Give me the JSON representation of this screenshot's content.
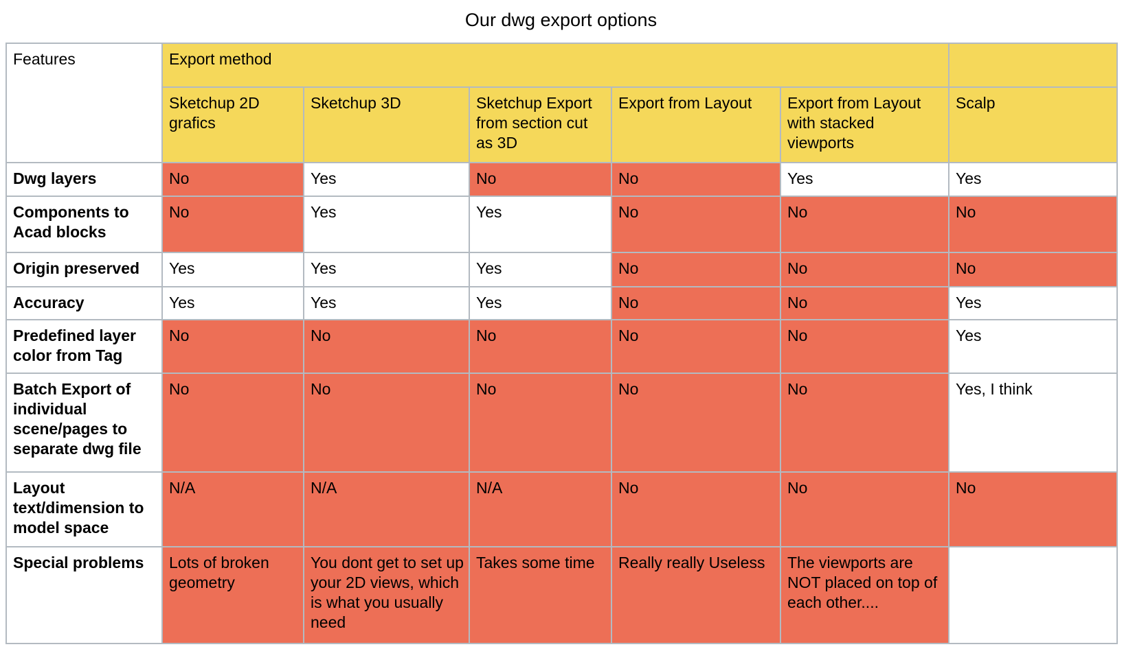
{
  "title": "Our dwg export options",
  "colors": {
    "header_fill": "#F5D85A",
    "negative_fill": "#ED6F56",
    "positive_fill": "#FFFFFF",
    "border": "#B3BAC1",
    "text": "#000000"
  },
  "chart_data": {
    "type": "table",
    "title": "Our dwg export options",
    "corner_header": "Features",
    "group_header": "Export method",
    "columns": [
      "Sketchup 2D grafics",
      "Sketchup 3D",
      "Sketchup Export from section cut as 3D",
      "Export from Layout",
      "Export from Layout with stacked viewports",
      "Scalp"
    ],
    "highlight_meaning": "red cell = negative answer / problem",
    "rows": [
      {
        "feature": "Dwg layers",
        "cells": [
          {
            "text": "No",
            "highlight": true
          },
          {
            "text": "Yes",
            "highlight": false
          },
          {
            "text": "No",
            "highlight": true
          },
          {
            "text": "No",
            "highlight": true
          },
          {
            "text": "Yes",
            "highlight": false
          },
          {
            "text": "Yes",
            "highlight": false
          }
        ]
      },
      {
        "feature": "Components to Acad blocks",
        "cells": [
          {
            "text": "No",
            "highlight": true
          },
          {
            "text": "Yes",
            "highlight": false
          },
          {
            "text": "Yes",
            "highlight": false
          },
          {
            "text": "No",
            "highlight": true
          },
          {
            "text": "No",
            "highlight": true
          },
          {
            "text": "No",
            "highlight": true
          }
        ]
      },
      {
        "feature": "Origin preserved",
        "cells": [
          {
            "text": "Yes",
            "highlight": false
          },
          {
            "text": "Yes",
            "highlight": false
          },
          {
            "text": "Yes",
            "highlight": false
          },
          {
            "text": "No",
            "highlight": true
          },
          {
            "text": "No",
            "highlight": true
          },
          {
            "text": "No",
            "highlight": true
          }
        ]
      },
      {
        "feature": "Accuracy",
        "cells": [
          {
            "text": "Yes",
            "highlight": false
          },
          {
            "text": "Yes",
            "highlight": false
          },
          {
            "text": "Yes",
            "highlight": false
          },
          {
            "text": "No",
            "highlight": true
          },
          {
            "text": "No",
            "highlight": true
          },
          {
            "text": "Yes",
            "highlight": false
          }
        ]
      },
      {
        "feature": "Predefined layer color from Tag",
        "cells": [
          {
            "text": "No",
            "highlight": true
          },
          {
            "text": "No",
            "highlight": true
          },
          {
            "text": "No",
            "highlight": true
          },
          {
            "text": "No",
            "highlight": true
          },
          {
            "text": "No",
            "highlight": true
          },
          {
            "text": "Yes",
            "highlight": false
          }
        ]
      },
      {
        "feature": "Batch Export of individual scene/pages to separate dwg file",
        "cells": [
          {
            "text": "No",
            "highlight": true
          },
          {
            "text": "No",
            "highlight": true
          },
          {
            "text": "No",
            "highlight": true
          },
          {
            "text": "No",
            "highlight": true
          },
          {
            "text": "No",
            "highlight": true
          },
          {
            "text": "Yes, I think",
            "highlight": false
          }
        ]
      },
      {
        "feature": "Layout text/dimension to model space",
        "cells": [
          {
            "text": "N/A",
            "highlight": true
          },
          {
            "text": "N/A",
            "highlight": true
          },
          {
            "text": "N/A",
            "highlight": true
          },
          {
            "text": "No",
            "highlight": true
          },
          {
            "text": "No",
            "highlight": true
          },
          {
            "text": "No",
            "highlight": true
          }
        ]
      },
      {
        "feature": "Special problems",
        "cells": [
          {
            "text": "Lots of broken geometry",
            "highlight": true
          },
          {
            "text": "You dont get to set up your 2D views, which is what you usually need",
            "highlight": true
          },
          {
            "text": "Takes some time",
            "highlight": true
          },
          {
            "text": "Really really Useless",
            "highlight": true
          },
          {
            "text": "The viewports are NOT placed on top of each other....",
            "highlight": true
          },
          {
            "text": "",
            "highlight": false
          }
        ]
      }
    ]
  }
}
